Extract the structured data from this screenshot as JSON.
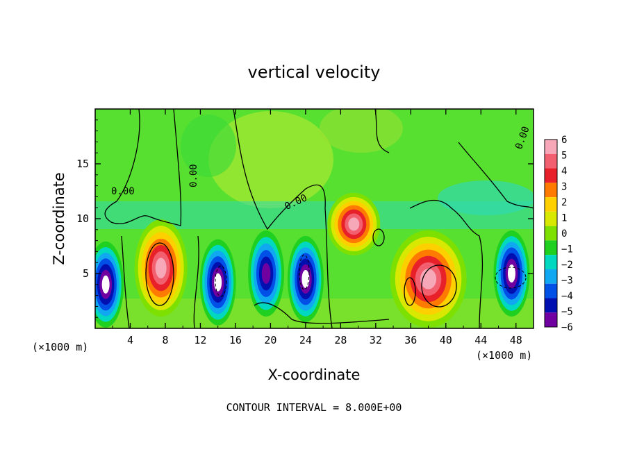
{
  "chart_data": {
    "type": "heatmap",
    "title": "vertical velocity",
    "xlabel": "X-coordinate",
    "ylabel": "Z-coordinate",
    "x_unit": "(×1000 m)",
    "footer": "CONTOUR INTERVAL = 8.000E+00",
    "xlim": [
      0,
      50
    ],
    "ylim": [
      0,
      20
    ],
    "x_ticks": [
      4,
      8,
      12,
      16,
      20,
      24,
      28,
      32,
      36,
      40,
      44,
      48
    ],
    "y_ticks": [
      5,
      10,
      15
    ],
    "colorbar": {
      "levels": [
        6,
        5,
        4,
        3,
        2,
        1,
        0,
        -1,
        -2,
        -3,
        -4,
        -5,
        -6
      ],
      "colors": [
        "#f7a8b8",
        "#f26070",
        "#e8202a",
        "#ff7a00",
        "#ffd000",
        "#d8e800",
        "#7ee000",
        "#20d020",
        "#00d8c0",
        "#10a8f0",
        "#0050e8",
        "#0010b0",
        "#7000a0"
      ]
    },
    "contour_labels": [
      "0.00",
      "0.00",
      "0.00",
      "0.00"
    ],
    "features": [
      {
        "kind": "updraft",
        "x": 7.5,
        "z": 5.5,
        "strength": 6
      },
      {
        "kind": "updraft",
        "x": 29.5,
        "z": 9.5,
        "strength": 6
      },
      {
        "kind": "updraft",
        "x": 38,
        "z": 4.5,
        "strength": 6
      },
      {
        "kind": "downdraft",
        "x": 1.2,
        "z": 4,
        "strength": -6
      },
      {
        "kind": "downdraft",
        "x": 14,
        "z": 4.2,
        "strength": -6
      },
      {
        "kind": "downdraft",
        "x": 19.5,
        "z": 5,
        "strength": -5
      },
      {
        "kind": "downdraft",
        "x": 24,
        "z": 4.5,
        "strength": -6
      },
      {
        "kind": "downdraft",
        "x": 47.5,
        "z": 5,
        "strength": -6
      }
    ]
  }
}
